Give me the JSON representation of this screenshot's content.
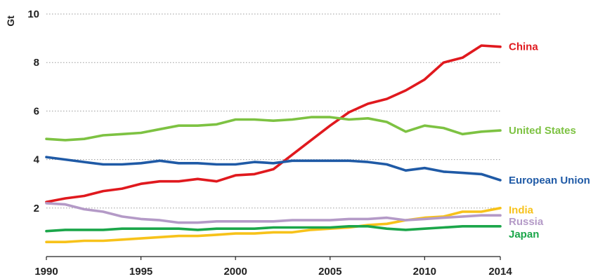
{
  "chart_data": {
    "type": "line",
    "title": "",
    "xlabel": "",
    "ylabel": "Gt",
    "xlim": [
      1990,
      2014
    ],
    "ylim": [
      0,
      10
    ],
    "grid": true,
    "legend": "inline-right",
    "x_ticks": [
      "1990",
      "1995",
      "2000",
      "2005",
      "2010",
      "2014"
    ],
    "y_ticks": [
      "2",
      "4",
      "6",
      "8",
      "10"
    ],
    "x": [
      1990,
      1991,
      1992,
      1993,
      1994,
      1995,
      1996,
      1997,
      1998,
      1999,
      2000,
      2001,
      2002,
      2003,
      2004,
      2005,
      2006,
      2007,
      2008,
      2009,
      2010,
      2011,
      2012,
      2013,
      2014
    ],
    "series": [
      {
        "name": "China",
        "color": "#e0191e",
        "values": [
          2.25,
          2.4,
          2.5,
          2.7,
          2.8,
          3.0,
          3.1,
          3.1,
          3.2,
          3.1,
          3.35,
          3.4,
          3.6,
          4.2,
          4.8,
          5.4,
          5.95,
          6.3,
          6.5,
          6.85,
          7.3,
          8.0,
          8.2,
          8.7,
          8.65
        ]
      },
      {
        "name": "United States",
        "color": "#7dc242",
        "values": [
          4.85,
          4.8,
          4.85,
          5.0,
          5.05,
          5.1,
          5.25,
          5.4,
          5.4,
          5.45,
          5.65,
          5.65,
          5.6,
          5.65,
          5.75,
          5.75,
          5.65,
          5.7,
          5.55,
          5.15,
          5.4,
          5.3,
          5.05,
          5.15,
          5.2
        ]
      },
      {
        "name": "European Union",
        "color": "#1f5aa6",
        "values": [
          4.1,
          4.0,
          3.9,
          3.8,
          3.8,
          3.85,
          3.95,
          3.85,
          3.85,
          3.8,
          3.8,
          3.9,
          3.85,
          3.95,
          3.95,
          3.95,
          3.95,
          3.9,
          3.8,
          3.55,
          3.65,
          3.5,
          3.45,
          3.4,
          3.15
        ]
      },
      {
        "name": "India",
        "color": "#f7c21a",
        "values": [
          0.6,
          0.6,
          0.65,
          0.65,
          0.7,
          0.75,
          0.8,
          0.85,
          0.85,
          0.9,
          0.95,
          0.95,
          1.0,
          1.0,
          1.1,
          1.15,
          1.2,
          1.3,
          1.35,
          1.5,
          1.6,
          1.65,
          1.85,
          1.85,
          2.0
        ]
      },
      {
        "name": "Russia",
        "color": "#b49ac7",
        "values": [
          2.2,
          2.15,
          1.95,
          1.85,
          1.65,
          1.55,
          1.5,
          1.4,
          1.4,
          1.45,
          1.45,
          1.45,
          1.45,
          1.5,
          1.5,
          1.5,
          1.55,
          1.55,
          1.6,
          1.5,
          1.55,
          1.6,
          1.65,
          1.7,
          1.7
        ]
      },
      {
        "name": "Japan",
        "color": "#1ba64a",
        "values": [
          1.05,
          1.1,
          1.1,
          1.1,
          1.15,
          1.15,
          1.15,
          1.15,
          1.1,
          1.15,
          1.15,
          1.15,
          1.2,
          1.2,
          1.2,
          1.2,
          1.25,
          1.25,
          1.15,
          1.1,
          1.15,
          1.2,
          1.25,
          1.25,
          1.25
        ]
      }
    ]
  }
}
